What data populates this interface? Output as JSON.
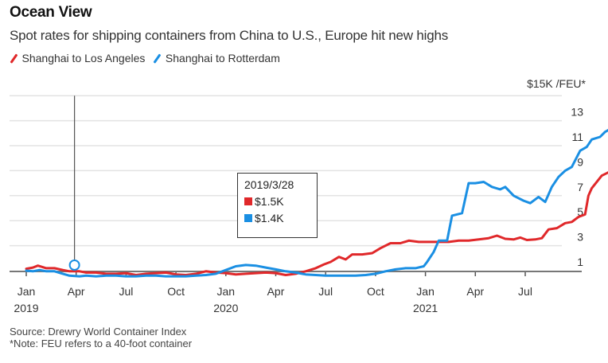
{
  "header": {
    "title": "Ocean View",
    "subtitle": "Spot rates for shipping containers from China to U.S., Europe hit new highs"
  },
  "legend": [
    {
      "label": "Shanghai to Los Angeles",
      "color": "#e0282a"
    },
    {
      "label": "Shanghai to Rotterdam",
      "color": "#1a8fe3"
    }
  ],
  "tooltip": {
    "date": "2019/3/28",
    "values": [
      {
        "series": "Shanghai to Los Angeles",
        "label": "$1.5K",
        "color": "#e0282a"
      },
      {
        "series": "Shanghai to Rotterdam",
        "label": "$1.4K",
        "color": "#1a8fe3"
      }
    ]
  },
  "footer": {
    "source": "Source: Drewry World Container Index",
    "note": "*Note: FEU refers to a 40-foot container"
  },
  "chart_data": {
    "type": "line",
    "title": "Ocean View",
    "subtitle": "Spot rates for shipping containers from China to U.S., Europe hit new highs",
    "ylabel": "$15K /FEU*",
    "ylim": [
      1,
      15
    ],
    "yticks": [
      1,
      3,
      5,
      7,
      9,
      11,
      13
    ],
    "grid": true,
    "legend_position": "top-left",
    "xlim": [
      "2019-01-01",
      "2021-10-01"
    ],
    "xticks": [
      {
        "date": "2019-01",
        "label": "Jan",
        "year": "2019"
      },
      {
        "date": "2019-04",
        "label": "Apr",
        "year": ""
      },
      {
        "date": "2019-07",
        "label": "Jul",
        "year": ""
      },
      {
        "date": "2019-10",
        "label": "Oct",
        "year": ""
      },
      {
        "date": "2020-01",
        "label": "Jan",
        "year": "2020"
      },
      {
        "date": "2020-04",
        "label": "Apr",
        "year": ""
      },
      {
        "date": "2020-07",
        "label": "Jul",
        "year": ""
      },
      {
        "date": "2020-10",
        "label": "Oct",
        "year": ""
      },
      {
        "date": "2021-01",
        "label": "Jan",
        "year": "2021"
      },
      {
        "date": "2021-04",
        "label": "Apr",
        "year": ""
      },
      {
        "date": "2021-07",
        "label": "Jul",
        "year": ""
      }
    ],
    "hover": {
      "date": "2019-03-28",
      "months_from_start": 2.9
    },
    "x_unit": "months since Jan 2019",
    "series": [
      {
        "name": "Shanghai to Los Angeles",
        "color": "#e0282a",
        "points": [
          [
            0,
            1.15
          ],
          [
            0.4,
            1.25
          ],
          [
            0.7,
            1.4
          ],
          [
            1.2,
            1.2
          ],
          [
            1.7,
            1.2
          ],
          [
            2.2,
            1.05
          ],
          [
            2.6,
            0.95
          ],
          [
            2.9,
            1.5
          ],
          [
            3.2,
            0.95
          ],
          [
            3.6,
            0.85
          ],
          [
            4.2,
            0.85
          ],
          [
            4.8,
            0.75
          ],
          [
            5.4,
            0.75
          ],
          [
            6.0,
            0.8
          ],
          [
            6.6,
            0.65
          ],
          [
            7.2,
            0.75
          ],
          [
            7.8,
            0.8
          ],
          [
            8.4,
            0.85
          ],
          [
            9.0,
            0.7
          ],
          [
            9.6,
            0.65
          ],
          [
            10.2,
            0.75
          ],
          [
            10.8,
            0.95
          ],
          [
            11.4,
            0.85
          ],
          [
            12.0,
            0.8
          ],
          [
            12.6,
            0.7
          ],
          [
            13.2,
            0.75
          ],
          [
            13.8,
            0.8
          ],
          [
            14.4,
            0.85
          ],
          [
            15.0,
            0.8
          ],
          [
            15.6,
            0.65
          ],
          [
            16.2,
            0.75
          ],
          [
            16.8,
            0.95
          ],
          [
            17.4,
            1.2
          ],
          [
            17.9,
            1.5
          ],
          [
            18.3,
            1.7
          ],
          [
            18.8,
            2.1
          ],
          [
            19.2,
            1.9
          ],
          [
            19.6,
            2.3
          ],
          [
            20.2,
            2.3
          ],
          [
            20.8,
            2.4
          ],
          [
            21.3,
            2.8
          ],
          [
            21.9,
            3.2
          ],
          [
            22.5,
            3.2
          ],
          [
            23.0,
            3.4
          ],
          [
            23.6,
            3.3
          ],
          [
            24.2,
            3.3
          ],
          [
            24.8,
            3.3
          ],
          [
            25.4,
            3.3
          ],
          [
            26.0,
            3.4
          ],
          [
            26.6,
            3.4
          ],
          [
            27.2,
            3.5
          ],
          [
            27.8,
            3.6
          ],
          [
            28.3,
            3.8
          ],
          [
            28.8,
            3.55
          ],
          [
            29.3,
            3.5
          ],
          [
            29.7,
            3.65
          ],
          [
            30.1,
            3.45
          ],
          [
            30.6,
            3.5
          ],
          [
            31.0,
            3.6
          ],
          [
            31.4,
            4.3
          ],
          [
            31.9,
            4.4
          ],
          [
            32.4,
            4.8
          ],
          [
            32.8,
            4.9
          ],
          [
            33.2,
            5.3
          ],
          [
            33.6,
            5.5
          ],
          [
            33.8,
            7.0
          ],
          [
            34.0,
            7.6
          ],
          [
            34.6,
            8.6
          ],
          [
            35.2,
            9.0
          ],
          [
            35.6,
            9.6
          ],
          [
            35.9,
            9.3
          ],
          [
            36.2,
            9.5
          ],
          [
            36.6,
            10.1
          ]
        ]
      },
      {
        "name": "Shanghai to Rotterdam",
        "color": "#1a8fe3",
        "points": [
          [
            0,
            1.0
          ],
          [
            0.4,
            0.95
          ],
          [
            0.8,
            1.05
          ],
          [
            1.2,
            0.95
          ],
          [
            1.7,
            0.95
          ],
          [
            2.2,
            0.75
          ],
          [
            2.6,
            0.6
          ],
          [
            2.9,
            1.4
          ],
          [
            3.2,
            0.55
          ],
          [
            3.6,
            0.6
          ],
          [
            4.2,
            0.55
          ],
          [
            4.8,
            0.6
          ],
          [
            5.4,
            0.6
          ],
          [
            6.0,
            0.55
          ],
          [
            6.6,
            0.5
          ],
          [
            7.2,
            0.6
          ],
          [
            7.8,
            0.6
          ],
          [
            8.4,
            0.45
          ],
          [
            9.0,
            0.4
          ],
          [
            9.6,
            0.55
          ],
          [
            10.2,
            0.6
          ],
          [
            10.8,
            0.65
          ],
          [
            11.4,
            0.75
          ],
          [
            12.0,
            1.05
          ],
          [
            12.6,
            1.35
          ],
          [
            13.2,
            1.45
          ],
          [
            13.8,
            1.4
          ],
          [
            14.4,
            1.25
          ],
          [
            15.0,
            1.1
          ],
          [
            15.6,
            0.95
          ],
          [
            16.2,
            0.85
          ],
          [
            16.8,
            0.7
          ],
          [
            17.4,
            0.65
          ],
          [
            18.0,
            0.6
          ],
          [
            18.6,
            0.6
          ],
          [
            19.2,
            0.6
          ],
          [
            19.8,
            0.6
          ],
          [
            20.4,
            0.65
          ],
          [
            21.0,
            0.75
          ],
          [
            21.6,
            0.95
          ],
          [
            22.2,
            1.1
          ],
          [
            22.8,
            1.2
          ],
          [
            23.4,
            1.2
          ],
          [
            23.9,
            1.35
          ],
          [
            24.1,
            1.7
          ],
          [
            24.5,
            2.5
          ],
          [
            24.8,
            3.4
          ],
          [
            25.3,
            3.4
          ],
          [
            25.6,
            5.4
          ],
          [
            26.2,
            5.6
          ],
          [
            26.6,
            8.0
          ],
          [
            27.0,
            8.0
          ],
          [
            27.5,
            8.1
          ],
          [
            28.0,
            7.7
          ],
          [
            28.5,
            7.5
          ],
          [
            28.8,
            7.7
          ],
          [
            29.3,
            7.0
          ],
          [
            29.9,
            6.6
          ],
          [
            30.3,
            6.4
          ],
          [
            30.8,
            6.9
          ],
          [
            31.2,
            6.5
          ],
          [
            31.6,
            7.7
          ],
          [
            32.0,
            8.5
          ],
          [
            32.4,
            9.0
          ],
          [
            32.8,
            9.3
          ],
          [
            33.3,
            10.6
          ],
          [
            33.7,
            10.9
          ],
          [
            34.0,
            11.5
          ],
          [
            34.5,
            11.7
          ],
          [
            34.8,
            12.1
          ],
          [
            35.2,
            12.4
          ],
          [
            35.6,
            12.5
          ],
          [
            36.1,
            12.7
          ],
          [
            36.6,
            12.7
          ]
        ]
      }
    ]
  }
}
